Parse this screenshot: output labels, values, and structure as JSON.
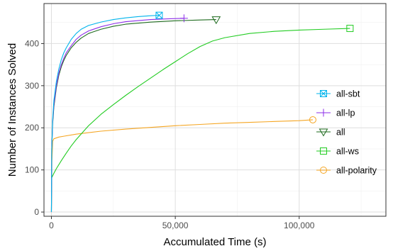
{
  "chart_data": {
    "type": "line",
    "xlabel": "Accumulated Time (s)",
    "ylabel": "Number of Instances Solved",
    "xlim": [
      -3000,
      135000
    ],
    "ylim": [
      -10,
      495
    ],
    "x_ticks": [
      0,
      50000,
      100000
    ],
    "x_tick_labels": [
      "0",
      "50,000",
      "100,000"
    ],
    "y_ticks": [
      0,
      100,
      200,
      300,
      400
    ],
    "y_tick_labels": [
      "0",
      "100",
      "200",
      "300",
      "400"
    ],
    "grid": true,
    "legend_position": "right",
    "series": [
      {
        "name": "all-sbt",
        "color": "#00b4ec",
        "marker": "square-cross",
        "points": [
          [
            0,
            0
          ],
          [
            150,
            150
          ],
          [
            500,
            220
          ],
          [
            1000,
            265
          ],
          [
            2000,
            310
          ],
          [
            3000,
            340
          ],
          [
            4000,
            362
          ],
          [
            5000,
            378
          ],
          [
            6000,
            390
          ],
          [
            8000,
            410
          ],
          [
            10000,
            424
          ],
          [
            12000,
            434
          ],
          [
            15000,
            443
          ],
          [
            20000,
            451
          ],
          [
            25000,
            457
          ],
          [
            30000,
            461
          ],
          [
            35000,
            464
          ],
          [
            40000,
            466
          ],
          [
            43500,
            467
          ]
        ]
      },
      {
        "name": "all-lp",
        "color": "#8c2ee8",
        "marker": "plus",
        "points": [
          [
            0,
            0
          ],
          [
            150,
            150
          ],
          [
            500,
            215
          ],
          [
            1000,
            255
          ],
          [
            2000,
            300
          ],
          [
            3000,
            330
          ],
          [
            4000,
            350
          ],
          [
            5000,
            365
          ],
          [
            6000,
            378
          ],
          [
            8000,
            395
          ],
          [
            10000,
            410
          ],
          [
            12000,
            420
          ],
          [
            15000,
            430
          ],
          [
            20000,
            440
          ],
          [
            25000,
            447
          ],
          [
            30000,
            452
          ],
          [
            40000,
            457
          ],
          [
            48000,
            459
          ],
          [
            53500,
            460
          ]
        ]
      },
      {
        "name": "all",
        "color": "#1f6b1f",
        "marker": "triangle-down",
        "points": [
          [
            0,
            0
          ],
          [
            150,
            150
          ],
          [
            500,
            210
          ],
          [
            1000,
            250
          ],
          [
            2000,
            295
          ],
          [
            3000,
            325
          ],
          [
            4000,
            345
          ],
          [
            5000,
            360
          ],
          [
            6000,
            372
          ],
          [
            8000,
            390
          ],
          [
            10000,
            403
          ],
          [
            12000,
            413
          ],
          [
            15000,
            424
          ],
          [
            20000,
            434
          ],
          [
            25000,
            441
          ],
          [
            30000,
            446
          ],
          [
            40000,
            451
          ],
          [
            50000,
            454
          ],
          [
            60000,
            456
          ],
          [
            66500,
            457
          ]
        ]
      },
      {
        "name": "all-ws",
        "color": "#22cc22",
        "marker": "square",
        "points": [
          [
            0,
            80
          ],
          [
            1000,
            92
          ],
          [
            2000,
            103
          ],
          [
            4000,
            122
          ],
          [
            6000,
            140
          ],
          [
            8000,
            157
          ],
          [
            10000,
            172
          ],
          [
            15000,
            205
          ],
          [
            20000,
            232
          ],
          [
            25000,
            255
          ],
          [
            30000,
            277
          ],
          [
            35000,
            298
          ],
          [
            40000,
            318
          ],
          [
            45000,
            338
          ],
          [
            50000,
            357
          ],
          [
            55000,
            376
          ],
          [
            60000,
            393
          ],
          [
            65000,
            406
          ],
          [
            70000,
            414
          ],
          [
            80000,
            424
          ],
          [
            90000,
            429
          ],
          [
            100000,
            432
          ],
          [
            110000,
            434
          ],
          [
            120500,
            436
          ]
        ]
      },
      {
        "name": "all-polarity",
        "color": "#f5a623",
        "marker": "circle",
        "points": [
          [
            0,
            0
          ],
          [
            200,
            120
          ],
          [
            500,
            168
          ],
          [
            1000,
            174
          ],
          [
            3000,
            178
          ],
          [
            5000,
            180
          ],
          [
            10000,
            185
          ],
          [
            20000,
            192
          ],
          [
            30000,
            197
          ],
          [
            40000,
            201
          ],
          [
            50000,
            205
          ],
          [
            60000,
            208
          ],
          [
            70000,
            211
          ],
          [
            80000,
            213
          ],
          [
            90000,
            215
          ],
          [
            100000,
            217
          ],
          [
            105500,
            219
          ]
        ]
      }
    ]
  }
}
